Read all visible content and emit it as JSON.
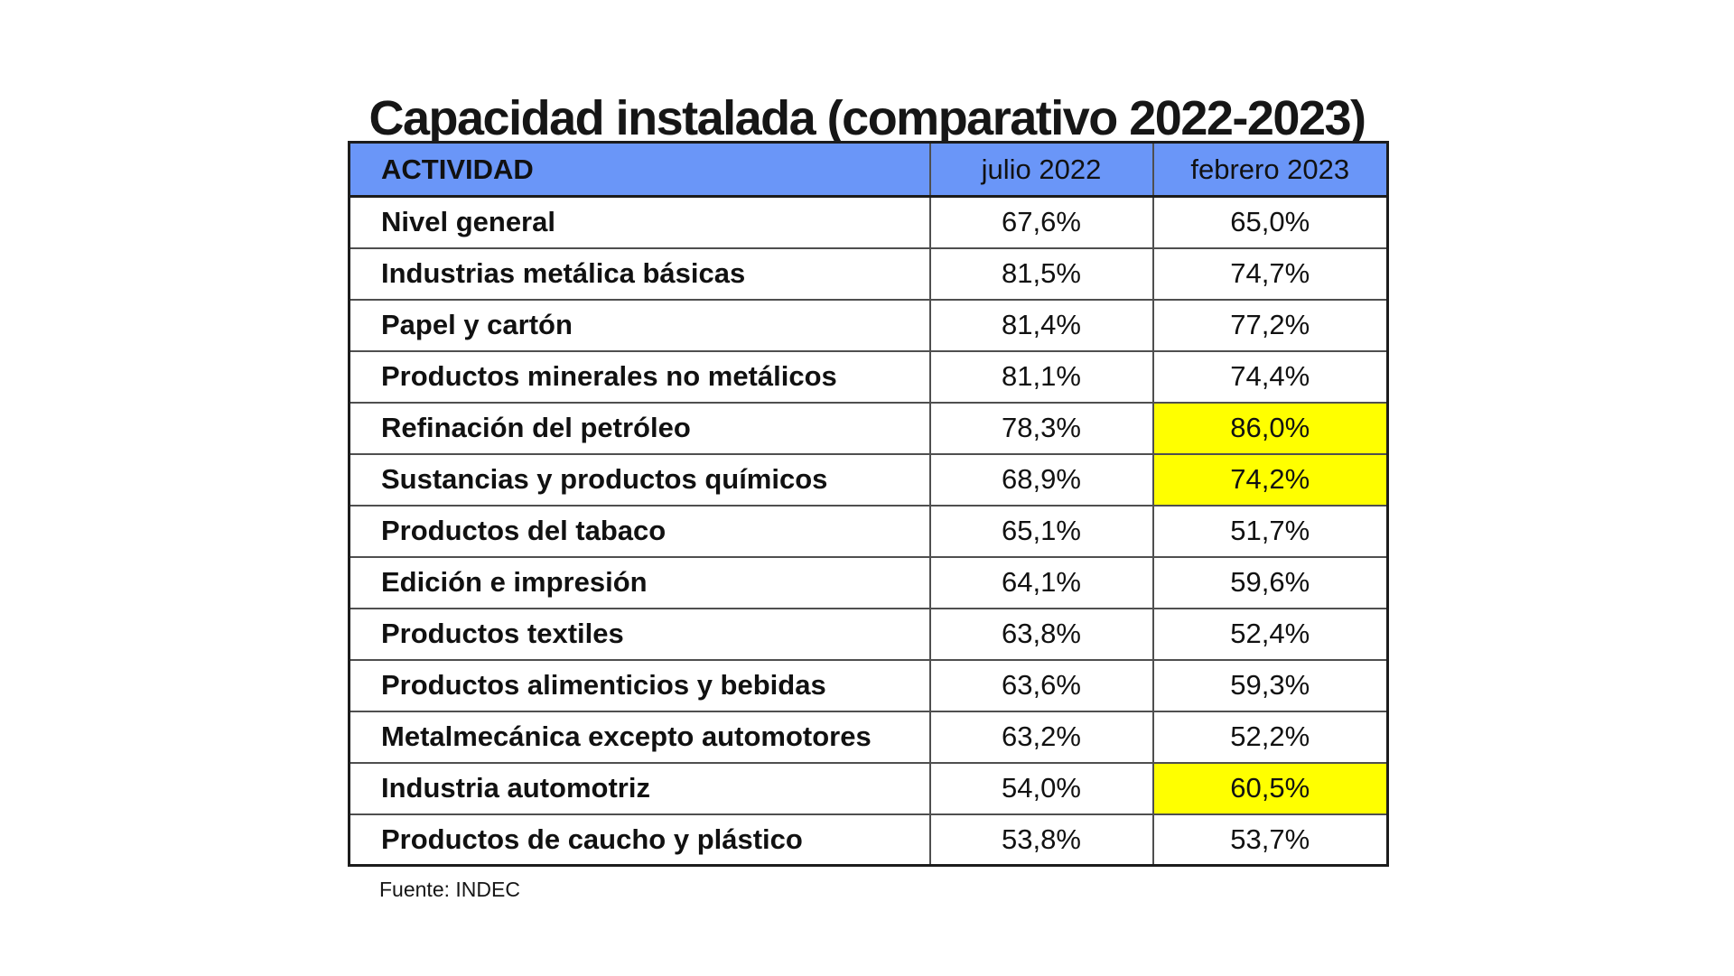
{
  "title": "Capacidad instalada (comparativo 2022-2023)",
  "source": "Fuente: INDEC",
  "colors": {
    "header_bg": "#6a96f8",
    "highlight": "#ffff00",
    "text": "#111111",
    "background": "#ffffff"
  },
  "table": {
    "columns": [
      "ACTIVIDAD",
      "julio 2022",
      "febrero 2023"
    ],
    "rows": [
      {
        "actividad": "Nivel general",
        "julio_2022": "67,6%",
        "febrero_2023": "65,0%",
        "highlight_febrero": false
      },
      {
        "actividad": "Industrias metálica básicas",
        "julio_2022": "81,5%",
        "febrero_2023": "74,7%",
        "highlight_febrero": false
      },
      {
        "actividad": "Papel y cartón",
        "julio_2022": "81,4%",
        "febrero_2023": "77,2%",
        "highlight_febrero": false
      },
      {
        "actividad": "Productos minerales no metálicos",
        "julio_2022": "81,1%",
        "febrero_2023": "74,4%",
        "highlight_febrero": false
      },
      {
        "actividad": "Refinación del petróleo",
        "julio_2022": "78,3%",
        "febrero_2023": "86,0%",
        "highlight_febrero": true
      },
      {
        "actividad": "Sustancias y productos químicos",
        "julio_2022": "68,9%",
        "febrero_2023": "74,2%",
        "highlight_febrero": true
      },
      {
        "actividad": "Productos del tabaco",
        "julio_2022": "65,1%",
        "febrero_2023": "51,7%",
        "highlight_febrero": false
      },
      {
        "actividad": "Edición e impresión",
        "julio_2022": "64,1%",
        "febrero_2023": "59,6%",
        "highlight_febrero": false
      },
      {
        "actividad": "Productos textiles",
        "julio_2022": "63,8%",
        "febrero_2023": "52,4%",
        "highlight_febrero": false
      },
      {
        "actividad": "Productos alimenticios y bebidas",
        "julio_2022": "63,6%",
        "febrero_2023": "59,3%",
        "highlight_febrero": false
      },
      {
        "actividad": "Metalmecánica excepto automotores",
        "julio_2022": "63,2%",
        "febrero_2023": "52,2%",
        "highlight_febrero": false
      },
      {
        "actividad": "Industria automotriz",
        "julio_2022": "54,0%",
        "febrero_2023": "60,5%",
        "highlight_febrero": true
      },
      {
        "actividad": "Productos de caucho y plástico",
        "julio_2022": "53,8%",
        "febrero_2023": "53,7%",
        "highlight_febrero": false
      }
    ]
  },
  "chart_data": {
    "type": "table",
    "title": "Capacidad instalada (comparativo 2022-2023)",
    "columns": [
      "ACTIVIDAD",
      "julio 2022",
      "febrero 2023"
    ],
    "unit": "%",
    "decimal_separator": ",",
    "rows": [
      {
        "actividad": "Nivel general",
        "julio_2022": 67.6,
        "febrero_2023": 65.0
      },
      {
        "actividad": "Industrias metálica básicas",
        "julio_2022": 81.5,
        "febrero_2023": 74.7
      },
      {
        "actividad": "Papel y cartón",
        "julio_2022": 81.4,
        "febrero_2023": 77.2
      },
      {
        "actividad": "Productos minerales no metálicos",
        "julio_2022": 81.1,
        "febrero_2023": 74.4
      },
      {
        "actividad": "Refinación del petróleo",
        "julio_2022": 78.3,
        "febrero_2023": 86.0
      },
      {
        "actividad": "Sustancias y productos químicos",
        "julio_2022": 68.9,
        "febrero_2023": 74.2
      },
      {
        "actividad": "Productos del tabaco",
        "julio_2022": 65.1,
        "febrero_2023": 51.7
      },
      {
        "actividad": "Edición e impresión",
        "julio_2022": 64.1,
        "febrero_2023": 59.6
      },
      {
        "actividad": "Productos textiles",
        "julio_2022": 63.8,
        "febrero_2023": 52.4
      },
      {
        "actividad": "Productos alimenticios y bebidas",
        "julio_2022": 63.6,
        "febrero_2023": 59.3
      },
      {
        "actividad": "Metalmecánica excepto automotores",
        "julio_2022": 63.2,
        "febrero_2023": 52.2
      },
      {
        "actividad": "Industria automotriz",
        "julio_2022": 54.0,
        "febrero_2023": 60.5
      },
      {
        "actividad": "Productos de caucho y plástico",
        "julio_2022": 53.8,
        "febrero_2023": 53.7
      }
    ],
    "highlighted_cells": [
      {
        "actividad": "Refinación del petróleo",
        "column": "febrero 2023",
        "value": 86.0
      },
      {
        "actividad": "Sustancias y productos químicos",
        "column": "febrero 2023",
        "value": 74.2
      },
      {
        "actividad": "Industria automotriz",
        "column": "febrero 2023",
        "value": 60.5
      }
    ],
    "source": "Fuente: INDEC"
  }
}
